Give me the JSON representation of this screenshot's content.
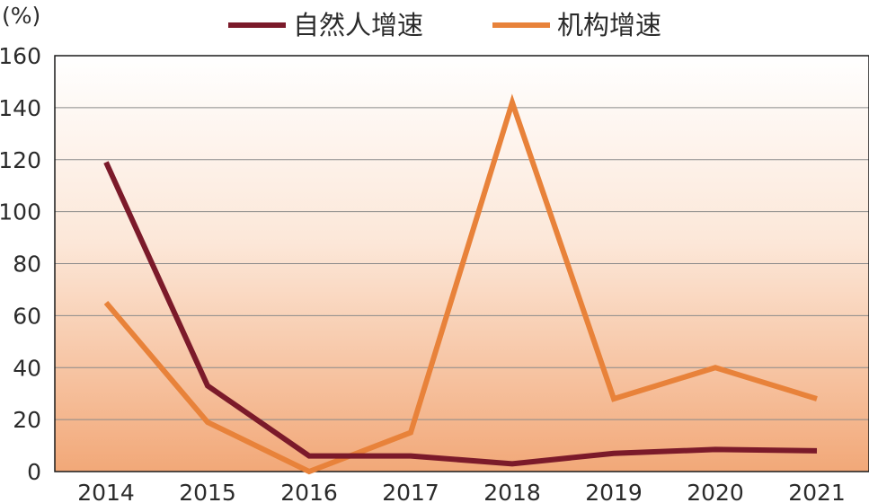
{
  "chart_data": {
    "type": "line",
    "unit_label": "(%)",
    "categories": [
      "2014",
      "2015",
      "2016",
      "2017",
      "2018",
      "2019",
      "2020",
      "2021"
    ],
    "ylim": [
      0,
      160
    ],
    "yticks": [
      0,
      20,
      40,
      60,
      80,
      100,
      120,
      140,
      160
    ],
    "grid": true,
    "legend_position": "top",
    "series": [
      {
        "name": "自然人增速",
        "color": "#7b1a2a",
        "values": [
          119,
          33,
          6,
          6,
          3,
          7,
          8.5,
          8
        ]
      },
      {
        "name": "机构增速",
        "color": "#e8823a",
        "values": [
          65,
          19,
          0,
          15,
          142,
          28,
          40,
          28
        ]
      }
    ]
  }
}
